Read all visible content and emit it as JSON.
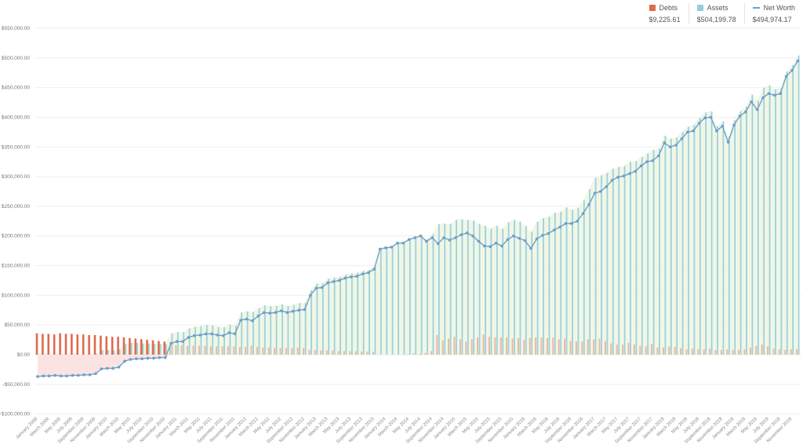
{
  "legend": [
    {
      "name": "Debts",
      "value": "$9,225.61",
      "color": "#e06a4c",
      "kind": "square"
    },
    {
      "name": "Assets",
      "value": "$504,199.78",
      "color": "#92cedb",
      "kind": "square"
    },
    {
      "name": "Net Worth",
      "value": "$494,974.17",
      "color": "#6f9fc9",
      "kind": "line"
    }
  ],
  "chart_data": {
    "type": "bar+line",
    "frequency": "monthly",
    "ylim": [
      -100000,
      550000
    ],
    "y_ticks": [
      550000,
      500000,
      450000,
      400000,
      350000,
      300000,
      250000,
      200000,
      150000,
      100000,
      50000,
      0,
      -50000,
      -100000
    ],
    "y_tick_labels": [
      "$550,000.00",
      "$500,000.00",
      "$450,000.00",
      "$400,000.00",
      "$350,000.00",
      "$300,000.00",
      "$250,000.00",
      "$200,000.00",
      "$150,000.00",
      "$100,000.00",
      "$50,000.00",
      "$0.00",
      "-$50,000.00",
      "-$100,000.00"
    ],
    "x_tick_labels": [
      "January 2009",
      "March 2009",
      "May 2009",
      "July 2009",
      "September 2009",
      "November 2009",
      "January 2010",
      "March 2010",
      "May 2010",
      "July 2010",
      "September 2010",
      "November 2010",
      "January 2011",
      "March 2011",
      "May 2011",
      "July 2011",
      "September 2011",
      "November 2011",
      "January 2012",
      "March 2012",
      "May 2012",
      "July 2012",
      "September 2012",
      "November 2012",
      "January 2013",
      "March 2013",
      "May 2013",
      "July 2013",
      "September 2013",
      "November 2013",
      "January 2014",
      "March 2014",
      "May 2014",
      "July 2014",
      "September 2014",
      "November 2014",
      "January 2015",
      "March 2015",
      "May 2015",
      "July 2015",
      "September 2015",
      "November 2015",
      "January 2016",
      "March 2016",
      "May 2016",
      "July 2016",
      "September 2016",
      "November 2016",
      "January 2017",
      "March 2017",
      "May 2017",
      "July 2017",
      "September 2017",
      "November 2017",
      "January 2018",
      "March 2018",
      "May 2018",
      "July 2018",
      "September 2018",
      "November 2018",
      "January 2019",
      "March 2019",
      "May 2019",
      "July 2019",
      "September 2019",
      "November 2019"
    ],
    "grid": true,
    "legend_position": "top-right",
    "units": "thousands USD",
    "series": [
      {
        "name": "Debts",
        "type": "bar",
        "color": "#e06a4c",
        "values": [
          36,
          35,
          35,
          34,
          36,
          35,
          35,
          34,
          34,
          33,
          33,
          32,
          31,
          30,
          30,
          29,
          28,
          27,
          26,
          25,
          24,
          23,
          22,
          17,
          16,
          16,
          15,
          15,
          15,
          15,
          14,
          14,
          14,
          14,
          14,
          13,
          13,
          15,
          13,
          12,
          12,
          11,
          11,
          11,
          11,
          12,
          11,
          8,
          8,
          7,
          7,
          7,
          6,
          6,
          6,
          6,
          5,
          5,
          5,
          0,
          0,
          0,
          0,
          0,
          1,
          2,
          1,
          3,
          6,
          33,
          24,
          27,
          30,
          26,
          22,
          26,
          29,
          34,
          30,
          29,
          29,
          29,
          27,
          28,
          25,
          28,
          29,
          29,
          28,
          29,
          26,
          27,
          23,
          22,
          22,
          26,
          26,
          27,
          23,
          19,
          17,
          17,
          20,
          17,
          15,
          14,
          18,
          12,
          12,
          14,
          13,
          11,
          9,
          10,
          9,
          9,
          10,
          8,
          8,
          9,
          8,
          8,
          9,
          12,
          15,
          17,
          14,
          10,
          9,
          8,
          9,
          9.23
        ]
      },
      {
        "name": "Assets",
        "type": "bar",
        "color": "#92cedb",
        "values": [
          0,
          0,
          0,
          0,
          0,
          0,
          0,
          0,
          0,
          0,
          1,
          8,
          8,
          7,
          9,
          18,
          20,
          20,
          19,
          19,
          18,
          18,
          17,
          36,
          38,
          38,
          44,
          47,
          48,
          50,
          49,
          47,
          46,
          51,
          49,
          71,
          73,
          72,
          78,
          83,
          82,
          82,
          85,
          82,
          84,
          87,
          87,
          108,
          120,
          120,
          128,
          130,
          131,
          135,
          137,
          138,
          141,
          143,
          149,
          178,
          180,
          181,
          188,
          188,
          195,
          199,
          201,
          194,
          203,
          220,
          221,
          220,
          227,
          228,
          227,
          226,
          220,
          217,
          212,
          217,
          212,
          223,
          227,
          224,
          217,
          207,
          224,
          230,
          232,
          239,
          241,
          248,
          244,
          247,
          260,
          279,
          298,
          302,
          306,
          313,
          316,
          318,
          325,
          326,
          333,
          339,
          345,
          347,
          369,
          364,
          366,
          375,
          384,
          387,
          399,
          408,
          410,
          385,
          393,
          367,
          395,
          410,
          418,
          438,
          428,
          450,
          454,
          447,
          449,
          477,
          488,
          504.2
        ]
      },
      {
        "name": "Net Worth",
        "type": "line",
        "color": "#6f9fc9",
        "values": [
          -37,
          -36,
          -36,
          -35,
          -36,
          -36,
          -35,
          -35,
          -34,
          -34,
          -32,
          -24,
          -23,
          -23,
          -21,
          -11,
          -8,
          -7,
          -7,
          -6,
          -6,
          -5,
          -5,
          19,
          22,
          22,
          29,
          32,
          33,
          35,
          35,
          33,
          32,
          37,
          35,
          58,
          60,
          57,
          65,
          71,
          70,
          71,
          74,
          71,
          73,
          75,
          76,
          100,
          112,
          113,
          121,
          123,
          125,
          129,
          131,
          132,
          136,
          138,
          144,
          178,
          180,
          181,
          188,
          188,
          194,
          197,
          200,
          191,
          197,
          187,
          197,
          193,
          197,
          202,
          205,
          200,
          191,
          183,
          182,
          188,
          183,
          194,
          200,
          196,
          192,
          179,
          195,
          201,
          204,
          210,
          215,
          221,
          221,
          225,
          238,
          253,
          272,
          275,
          283,
          294,
          299,
          301,
          305,
          309,
          318,
          325,
          327,
          335,
          357,
          350,
          353,
          364,
          375,
          377,
          390,
          399,
          400,
          377,
          385,
          358,
          387,
          402,
          409,
          426,
          413,
          433,
          440,
          437,
          440,
          469,
          479,
          494.97
        ]
      }
    ]
  }
}
